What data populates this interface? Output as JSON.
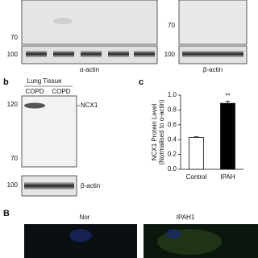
{
  "panel_a": {
    "markers_left": [
      "70",
      "100"
    ],
    "markers_right": [
      "70",
      "100"
    ],
    "loading_left": "α-actin",
    "loading_right": "β-actin"
  },
  "panel_b": {
    "label": "b",
    "tissue": "Lung Tissue",
    "lanes": [
      "COPD",
      "COPD"
    ],
    "markers": [
      "120",
      "70"
    ],
    "target": "NCX1",
    "loading_marker": "100",
    "loading": "β-actin"
  },
  "chart_data": {
    "type": "bar",
    "panel_label": "c",
    "ylabel": [
      "NCX1 Protein Level",
      "(Normalised to α-actin)"
    ],
    "categories": [
      "Control",
      "IPAH"
    ],
    "values": [
      0.43,
      0.89
    ],
    "errors": [
      0.01,
      0.03
    ],
    "colors": [
      "#ffffff",
      "#000000"
    ],
    "annotations": [
      null,
      "**"
    ],
    "ylim": [
      0,
      1
    ],
    "yticks": [
      {
        "value": 0,
        "label": "0.0"
      },
      {
        "value": 0.2,
        "label": "0.2"
      },
      {
        "value": 0.4,
        "label": "0.4"
      },
      {
        "value": 0.6,
        "label": "0.6"
      },
      {
        "value": 0.8,
        "label": "0.8"
      },
      {
        "value": 1,
        "label": "1.0"
      }
    ]
  },
  "panel_B": {
    "label": "B",
    "images": [
      "Nor",
      "IPAH1"
    ]
  }
}
